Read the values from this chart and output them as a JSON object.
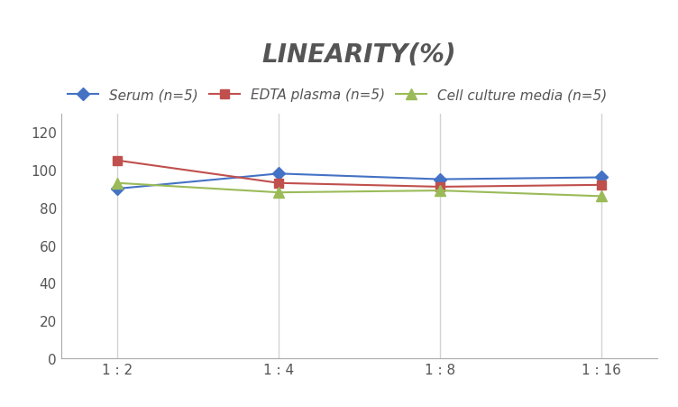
{
  "title": "LINEARITY(%)",
  "x_labels": [
    "1 : 2",
    "1 : 4",
    "1 : 8",
    "1 : 16"
  ],
  "series": [
    {
      "label": "Serum (n=5)",
      "values": [
        90,
        98,
        95,
        96
      ],
      "color": "#4472C4",
      "marker": "D",
      "marker_size": 7
    },
    {
      "label": "EDTA plasma (n=5)",
      "values": [
        105,
        93,
        91,
        92
      ],
      "color": "#C0504D",
      "marker": "s",
      "marker_size": 7
    },
    {
      "label": "Cell culture media (n=5)",
      "values": [
        93,
        88,
        89,
        86
      ],
      "color": "#9BBB59",
      "marker": "^",
      "marker_size": 8
    }
  ],
  "ylim": [
    0,
    130
  ],
  "yticks": [
    0,
    20,
    40,
    60,
    80,
    100,
    120
  ],
  "background_color": "#ffffff",
  "grid_color": "#d3d3d3",
  "title_fontsize": 20,
  "legend_fontsize": 11,
  "tick_fontsize": 11
}
